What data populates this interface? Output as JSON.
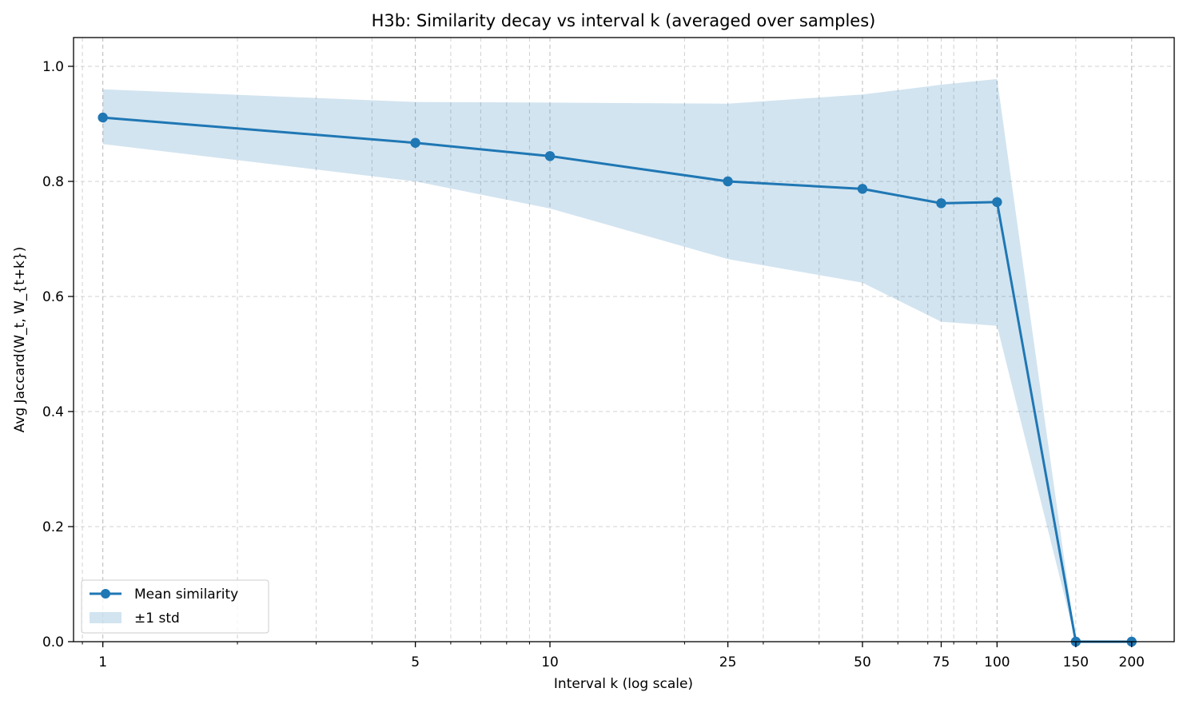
{
  "chart_data": {
    "type": "line",
    "title": "H3b: Similarity decay vs interval k (averaged over samples)",
    "xlabel": "Interval k (log scale)",
    "ylabel": "Avg Jaccard(W_t, W_{t+k})",
    "xscale": "log",
    "xlim": [
      0.86,
      249
    ],
    "ylim": [
      0,
      1.05
    ],
    "x": [
      1,
      5,
      10,
      25,
      50,
      75,
      100,
      150,
      200
    ],
    "x_tick_labels": [
      "1",
      "5",
      "10",
      "25",
      "50",
      "75",
      "100",
      "150",
      "200"
    ],
    "y_ticks": [
      0.0,
      0.2,
      0.4,
      0.6,
      0.8,
      1.0
    ],
    "y_tick_labels": [
      "0.0",
      "0.2",
      "0.4",
      "0.6",
      "0.8",
      "1.0"
    ],
    "grid": true,
    "legend_position": "lower-left",
    "series": [
      {
        "name": "Mean similarity",
        "values": [
          0.911,
          0.867,
          0.844,
          0.8,
          0.787,
          0.762,
          0.764,
          0.0,
          0.0
        ],
        "color": "#1f77b4"
      }
    ],
    "band": {
      "name": "±1 std",
      "upper": [
        0.96,
        0.938,
        0.937,
        0.935,
        0.951,
        0.968,
        0.978,
        0.0,
        0.0
      ],
      "lower": [
        0.865,
        0.8,
        0.753,
        0.665,
        0.624,
        0.556,
        0.549,
        0.0,
        0.0
      ],
      "color": "#1f77b4",
      "opacity": 0.2
    }
  }
}
